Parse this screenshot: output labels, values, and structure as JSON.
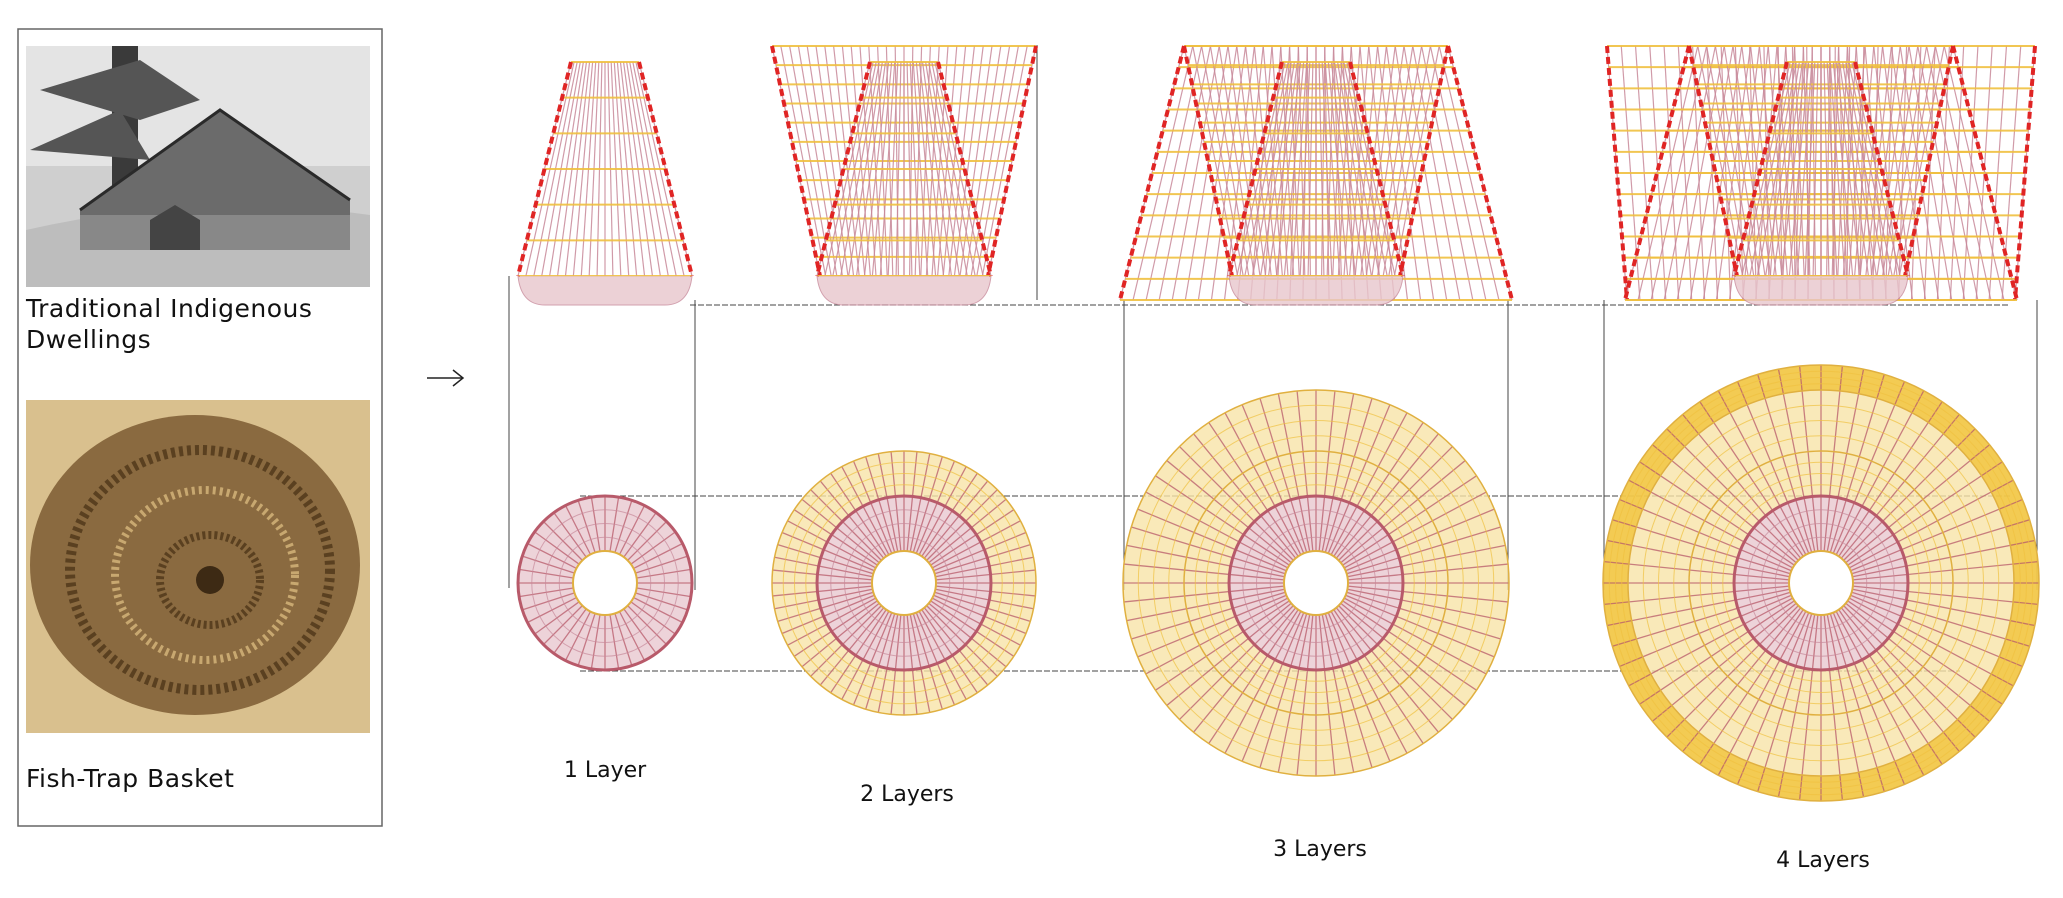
{
  "reference_panel": {
    "items": [
      {
        "caption_line1": "Traditional Indigenous",
        "caption_line2": "Dwellings",
        "image": "engraving of conical thatched dwelling beside tree"
      },
      {
        "caption_line1": "Fish-Trap Basket",
        "image": "photo of woven fish-trap basket"
      }
    ]
  },
  "arrow_icon": "right-arrow",
  "layers": [
    {
      "label": "1 Layer",
      "count": 1
    },
    {
      "label": "2 Layers",
      "count": 2
    },
    {
      "label": "3 Layers",
      "count": 3
    },
    {
      "label": "4 Layers",
      "count": 4
    }
  ],
  "colors": {
    "edge_dashed": "#e02424",
    "warp": "#c8899a",
    "weft": "#f0c040",
    "inner_ring": "#b85a6a",
    "guide": "#333333",
    "panel_border": "#666666"
  }
}
